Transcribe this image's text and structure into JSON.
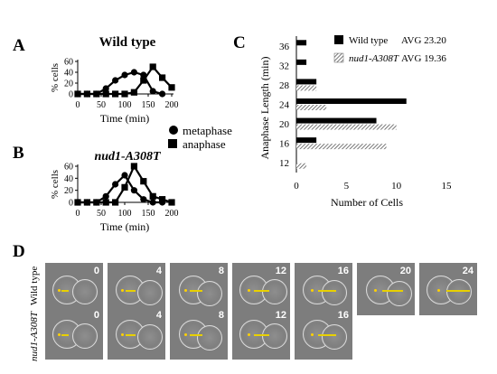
{
  "panel_letters": {
    "a": "A",
    "b": "B",
    "c": "C",
    "d": "D"
  },
  "panel_a": {
    "title": "Wild type"
  },
  "panel_b": {
    "title": "nud1-A308T"
  },
  "legend_ab": {
    "metaphase": "metaphase",
    "anaphase": "anaphase"
  },
  "panel_c": {
    "legend": [
      {
        "name": "Wild type",
        "avg": "AVG 23.20"
      },
      {
        "name": "nud1-A308T",
        "avg": "AVG 19.36"
      }
    ]
  },
  "panel_d": {
    "rows": [
      {
        "label": "Wild type",
        "frames": [
          "0",
          "4",
          "8",
          "12",
          "16",
          "20",
          "24"
        ]
      },
      {
        "label": "nud1-A308T",
        "frames": [
          "0",
          "4",
          "8",
          "12",
          "16"
        ]
      }
    ]
  },
  "chart_data": [
    {
      "type": "line",
      "panel": "A",
      "title": "Wild type",
      "xlabel": "Time (min)",
      "ylabel": "% cells",
      "xlim": [
        0,
        200
      ],
      "ylim": [
        0,
        60
      ],
      "xticks": [
        "0",
        "50",
        "100",
        "150",
        "200"
      ],
      "yticks": [
        "0",
        "20",
        "40",
        "60"
      ],
      "series": [
        {
          "name": "metaphase",
          "marker": "circle",
          "x": [
            0,
            20,
            40,
            60,
            80,
            100,
            120,
            140,
            160,
            180
          ],
          "y": [
            0,
            0,
            0,
            10,
            25,
            35,
            40,
            35,
            5,
            0
          ]
        },
        {
          "name": "anaphase",
          "marker": "square",
          "x": [
            0,
            20,
            40,
            60,
            80,
            100,
            120,
            140,
            160,
            180,
            200
          ],
          "y": [
            0,
            0,
            0,
            0,
            0,
            0,
            3,
            25,
            50,
            30,
            12
          ]
        }
      ]
    },
    {
      "type": "line",
      "panel": "B",
      "title": "nud1-A308T",
      "xlabel": "Time (min)",
      "ylabel": "% cells",
      "xlim": [
        0,
        200
      ],
      "ylim": [
        0,
        60
      ],
      "xticks": [
        "0",
        "50",
        "100",
        "150",
        "200"
      ],
      "yticks": [
        "0",
        "20",
        "40",
        "60"
      ],
      "series": [
        {
          "name": "metaphase",
          "marker": "circle",
          "x": [
            0,
            20,
            40,
            60,
            80,
            100,
            120,
            140,
            160,
            180
          ],
          "y": [
            0,
            0,
            0,
            10,
            30,
            45,
            20,
            5,
            0,
            0
          ]
        },
        {
          "name": "anaphase",
          "marker": "square",
          "x": [
            0,
            20,
            40,
            60,
            80,
            100,
            120,
            140,
            160,
            180,
            200
          ],
          "y": [
            0,
            0,
            0,
            0,
            0,
            25,
            60,
            35,
            10,
            5,
            0
          ]
        }
      ]
    },
    {
      "type": "bar",
      "orientation": "horizontal",
      "panel": "C",
      "xlabel": "Number of Cells",
      "ylabel": "Anaphase Length (min)",
      "xlim": [
        0,
        15
      ],
      "xticks": [
        "0",
        "5",
        "10",
        "15"
      ],
      "categories": [
        "12",
        "16",
        "20",
        "24",
        "28",
        "32",
        "36"
      ],
      "series": [
        {
          "name": "Wild type",
          "pattern": "solid",
          "values": [
            0,
            2,
            8,
            11,
            2,
            1,
            1
          ]
        },
        {
          "name": "nud1-A308T",
          "pattern": "hatched",
          "values": [
            1,
            9,
            10,
            3,
            2,
            0,
            0
          ]
        }
      ],
      "legend": "top-right"
    }
  ]
}
